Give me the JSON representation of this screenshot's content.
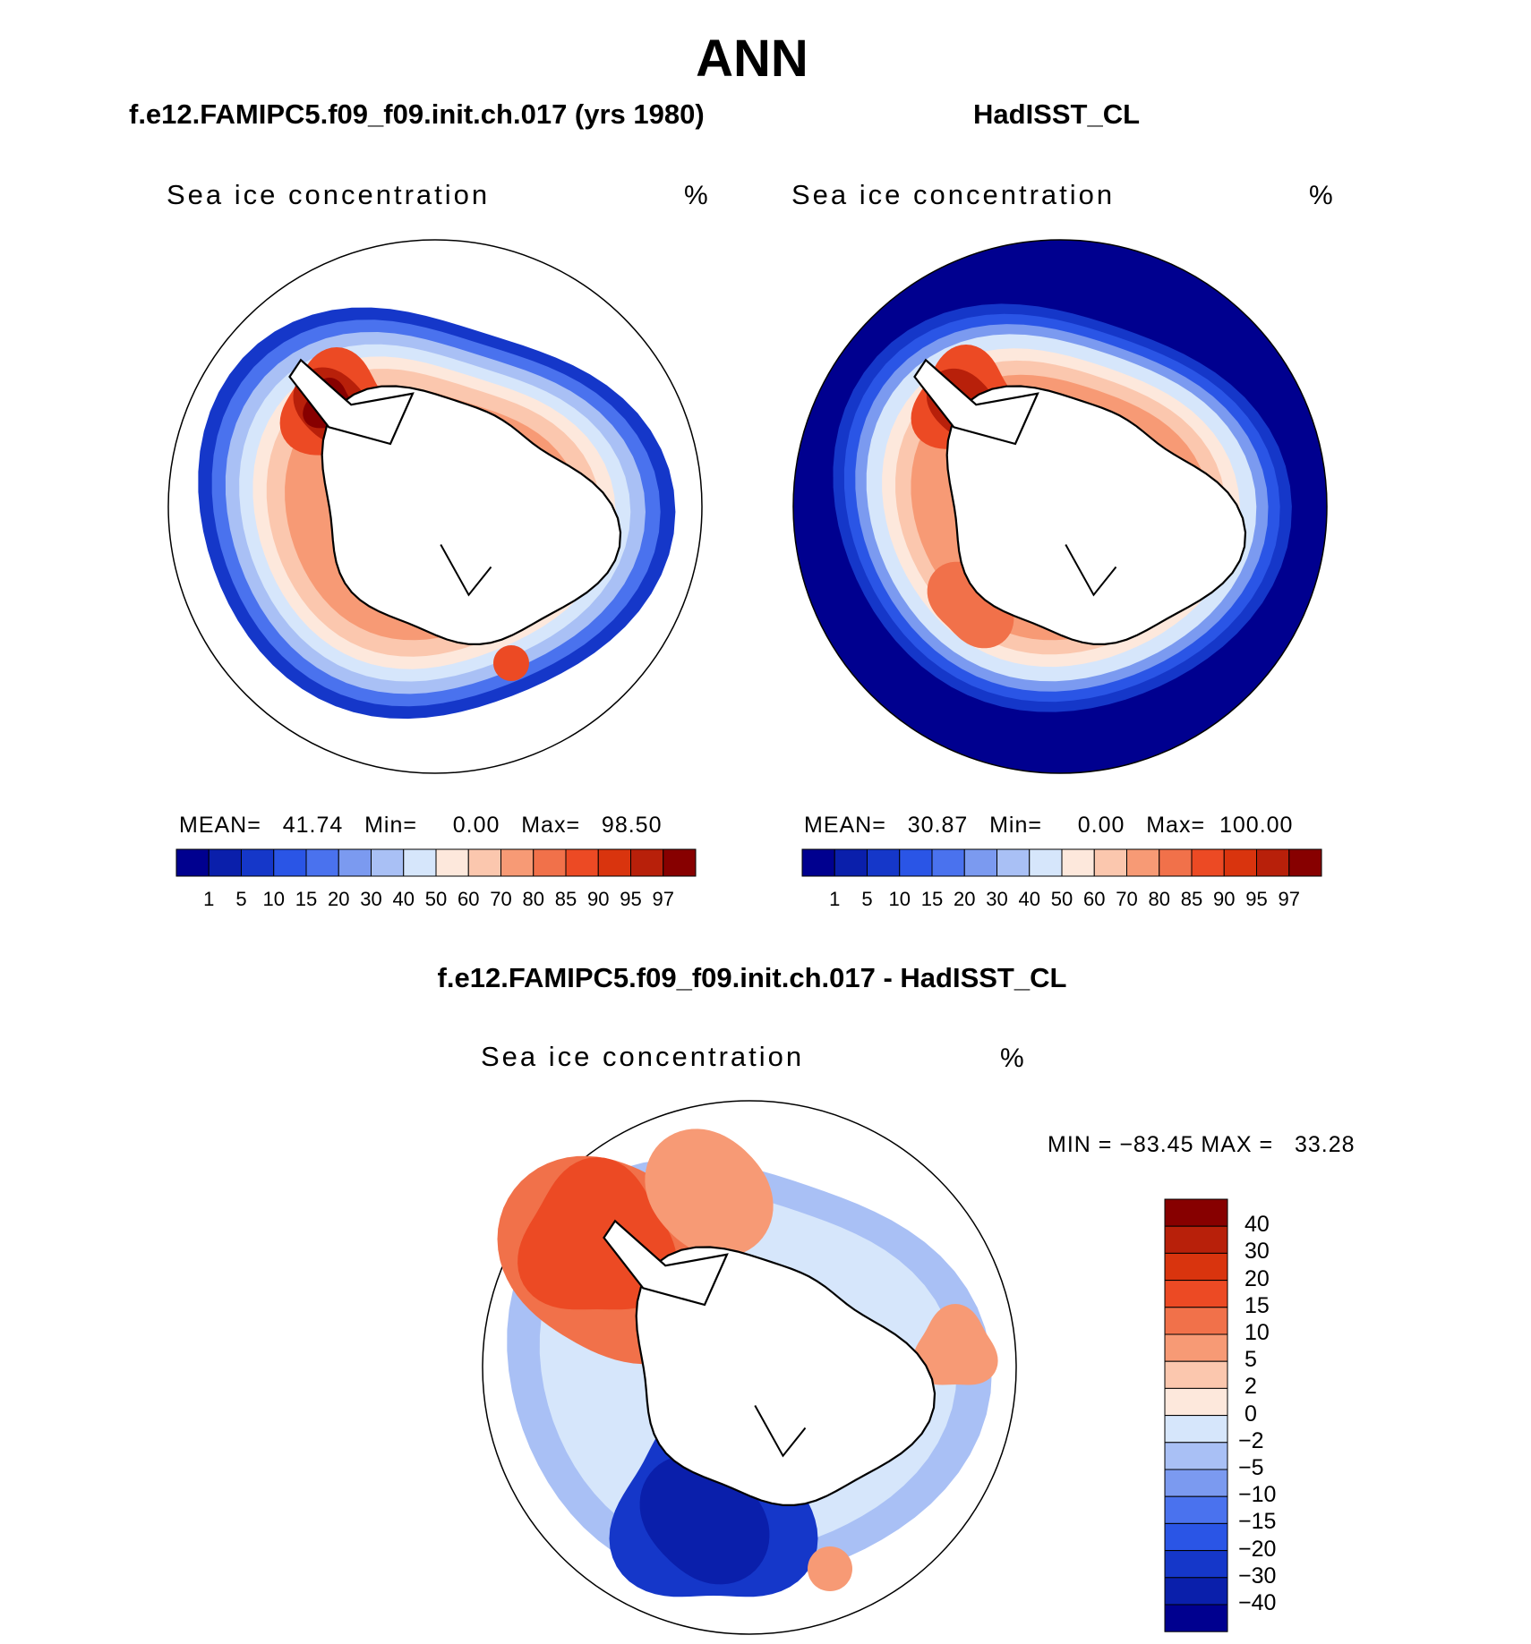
{
  "page_title": "ANN",
  "panels": [
    {
      "subtitle": "f.e12.FAMIPC5.f09_f09.init.ch.017 (yrs 1980)",
      "variable": "Sea ice concentration",
      "units": "%",
      "stats": {
        "mean": "41.74",
        "min": "0.00",
        "max": "98.50"
      }
    },
    {
      "subtitle": "HadISST_CL",
      "variable": "Sea ice concentration",
      "units": "%",
      "stats": {
        "mean": "30.87",
        "min": "0.00",
        "max": "100.00"
      }
    }
  ],
  "difference": {
    "title": "f.e12.FAMIPC5.f09_f09.init.ch.017 - HadISST_CL",
    "variable": "Sea ice concentration",
    "units": "%",
    "minmax_text": "MIN = −83.45 MAX =   33.28"
  },
  "stat_labels": {
    "mean": "MEAN=",
    "min": "Min=",
    "max": "Max="
  },
  "chart_data": [
    {
      "type": "heatmap",
      "projection": "south-polar-stereographic",
      "title": "f.e12.FAMIPC5.f09_f09.init.ch.017 (yrs 1980)",
      "variable": "Sea ice concentration",
      "units": "%",
      "mean": 41.74,
      "min": 0.0,
      "max": 98.5,
      "colorbar_levels": [
        1,
        5,
        10,
        15,
        20,
        30,
        40,
        50,
        60,
        70,
        80,
        85,
        90,
        95,
        97
      ],
      "colors": [
        "#00008f",
        "#0a1fab",
        "#1537c9",
        "#2a55e6",
        "#4a72ee",
        "#7b9af0",
        "#a9c0f5",
        "#d6e6fb",
        "#fde8dc",
        "#fbc7ae",
        "#f79a75",
        "#f1714a",
        "#ec4a24",
        "#d9340e",
        "#b8200a",
        "#870000"
      ]
    },
    {
      "type": "heatmap",
      "projection": "south-polar-stereographic",
      "title": "HadISST_CL",
      "variable": "Sea ice concentration",
      "units": "%",
      "mean": 30.87,
      "min": 0.0,
      "max": 100.0,
      "colorbar_levels": [
        1,
        5,
        10,
        15,
        20,
        30,
        40,
        50,
        60,
        70,
        80,
        85,
        90,
        95,
        97
      ],
      "colors": [
        "#00008f",
        "#0a1fab",
        "#1537c9",
        "#2a55e6",
        "#4a72ee",
        "#7b9af0",
        "#a9c0f5",
        "#d6e6fb",
        "#fde8dc",
        "#fbc7ae",
        "#f79a75",
        "#f1714a",
        "#ec4a24",
        "#d9340e",
        "#b8200a",
        "#870000"
      ]
    },
    {
      "type": "heatmap",
      "projection": "south-polar-stereographic",
      "title": "f.e12.FAMIPC5.f09_f09.init.ch.017 - HadISST_CL",
      "variable": "Sea ice concentration",
      "units": "%",
      "min": -83.45,
      "max": 33.28,
      "colorbar_levels": [
        40,
        30,
        20,
        15,
        10,
        5,
        2,
        0,
        -2,
        -5,
        -10,
        -15,
        -20,
        -30,
        -40
      ],
      "colorbar_tick_text": [
        "40",
        "30",
        "20",
        "15",
        "10",
        "5",
        "2",
        "0",
        "−2",
        "−5",
        "−10",
        "−15",
        "−20",
        "−30",
        "−40"
      ],
      "colors": [
        "#870000",
        "#b8200a",
        "#d9340e",
        "#ec4a24",
        "#f1714a",
        "#f79a75",
        "#fbc7ae",
        "#fde8dc",
        "#d6e6fb",
        "#a9c0f5",
        "#7b9af0",
        "#4a72ee",
        "#2a55e6",
        "#1537c9",
        "#0a1fab",
        "#00008f"
      ]
    }
  ]
}
